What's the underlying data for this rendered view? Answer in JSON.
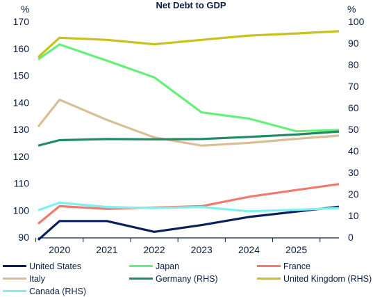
{
  "chart_data": {
    "type": "line",
    "title": "Net Debt to GDP",
    "left_unit": "%",
    "right_unit": "%",
    "x_ticks": [
      "2020",
      "2021",
      "2022",
      "2023",
      "2024",
      "2025"
    ],
    "x_range": [
      2019.55,
      2025.9
    ],
    "left_axis": {
      "min": 90,
      "max": 170,
      "ticks": [
        90,
        100,
        110,
        120,
        130,
        140,
        150,
        160,
        170
      ]
    },
    "right_axis": {
      "min": 0,
      "max": 100,
      "ticks": [
        0,
        10,
        20,
        30,
        40,
        50,
        60,
        70,
        80,
        90,
        100
      ]
    },
    "series": [
      {
        "name": "United States",
        "color": "#0b1f5c",
        "axis": "left",
        "x": [
          2019.55,
          2020,
          2021,
          2022,
          2023,
          2024,
          2025,
          2025.9
        ],
        "y": [
          89,
          96,
          96,
          92,
          94.5,
          97.5,
          99.5,
          101.3
        ]
      },
      {
        "name": "Japan",
        "color": "#66f07a",
        "axis": "left",
        "x": [
          2019.55,
          2020,
          2021,
          2022,
          2023,
          2024,
          2025,
          2025.9
        ],
        "y": [
          156,
          161.5,
          155.5,
          149.3,
          136.3,
          134,
          129.3,
          129.8
        ]
      },
      {
        "name": "France",
        "color": "#f07a6e",
        "axis": "left",
        "x": [
          2019.55,
          2020,
          2021,
          2022,
          2023,
          2024,
          2025,
          2025.9
        ],
        "y": [
          95,
          101.5,
          100.5,
          101,
          101.5,
          105,
          107.5,
          109.7
        ]
      },
      {
        "name": "Italy",
        "color": "#d8bf96",
        "axis": "left",
        "x": [
          2019.55,
          2020,
          2021,
          2022,
          2023,
          2024,
          2025,
          2025.9
        ],
        "y": [
          131,
          141,
          133.5,
          127,
          124,
          125,
          126.5,
          127.7
        ]
      },
      {
        "name": "Germany (RHS)",
        "color": "#1f8c66",
        "axis": "right",
        "x": [
          2019.55,
          2020,
          2021,
          2022,
          2023,
          2024,
          2025,
          2025.9
        ],
        "y": [
          42.5,
          45,
          45.5,
          45.4,
          45.5,
          46.5,
          47.6,
          49
        ]
      },
      {
        "name": "United Kingdom (RHS)",
        "color": "#c8c21e",
        "axis": "right",
        "x": [
          2019.55,
          2020,
          2021,
          2022,
          2023,
          2024,
          2025,
          2025.9
        ],
        "y": [
          83.5,
          92.5,
          91.5,
          89.5,
          91.5,
          93.5,
          94.5,
          95.5
        ]
      },
      {
        "name": "Canada (RHS)",
        "color": "#7ef0f0",
        "axis": "right",
        "x": [
          2019.55,
          2020,
          2021,
          2022,
          2023,
          2024,
          2025,
          2025.9
        ],
        "y": [
          12.5,
          16,
          14,
          13.5,
          14,
          12,
          12.7,
          13.5
        ]
      }
    ],
    "legend_position": "bottom"
  }
}
